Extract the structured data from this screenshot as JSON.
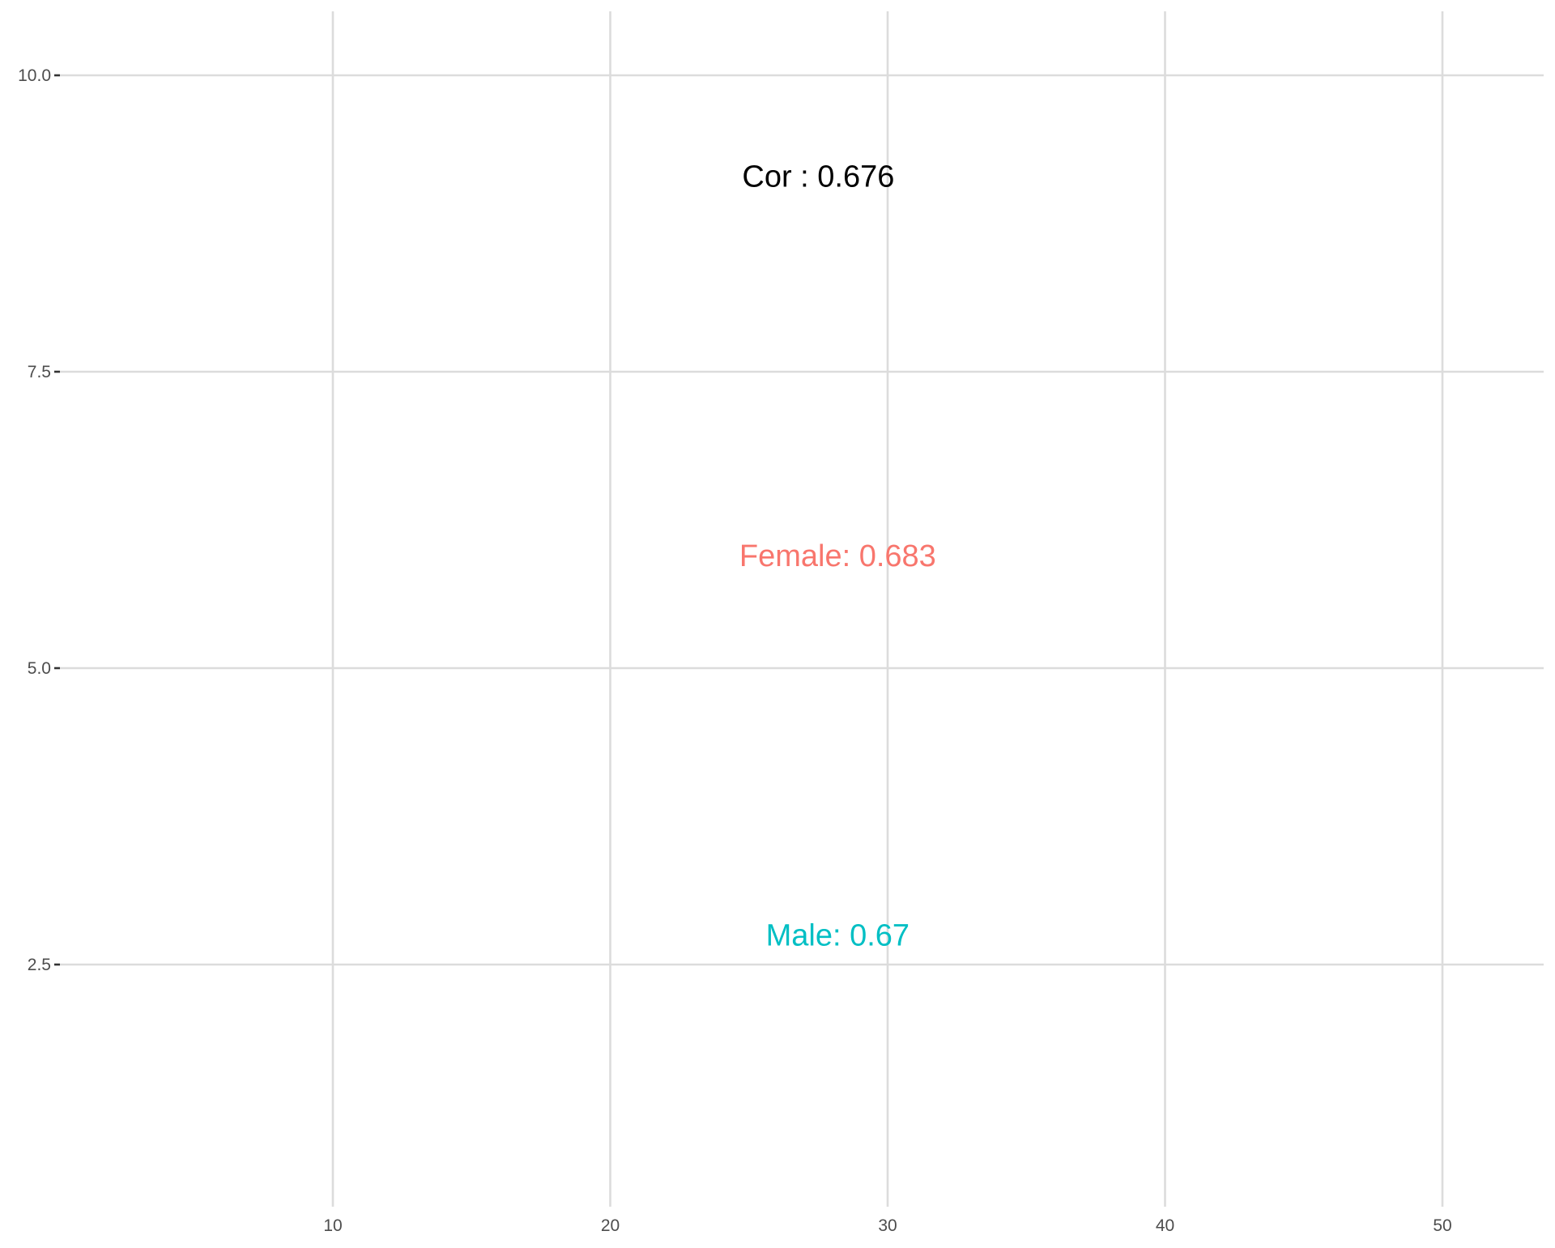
{
  "chart_data": {
    "type": "scatter",
    "title": "",
    "xlabel": "",
    "ylabel": "",
    "xlim": [
      0,
      54
    ],
    "ylim": [
      0.6,
      10.6
    ],
    "grid": true,
    "x_ticks": [
      {
        "value": 10,
        "label": "10"
      },
      {
        "value": 20,
        "label": "20"
      },
      {
        "value": 30,
        "label": "30"
      },
      {
        "value": 40,
        "label": "40"
      },
      {
        "value": 50,
        "label": "50"
      }
    ],
    "y_ticks": [
      {
        "value": 2.5,
        "label": "2.5"
      },
      {
        "value": 5.0,
        "label": "5.0"
      },
      {
        "value": 7.5,
        "label": "7.5"
      },
      {
        "value": 10.0,
        "label": "10.0"
      }
    ],
    "annotations": [
      {
        "text": "Cor : 0.676",
        "x": 27.5,
        "y": 9.15,
        "color": "#000000"
      },
      {
        "text": "Female: 0.683",
        "x": 28.2,
        "y": 5.95,
        "color": "#F8766D"
      },
      {
        "text": "Male: 0.67",
        "x": 28.2,
        "y": 2.75,
        "color": "#00BFC4"
      }
    ]
  }
}
